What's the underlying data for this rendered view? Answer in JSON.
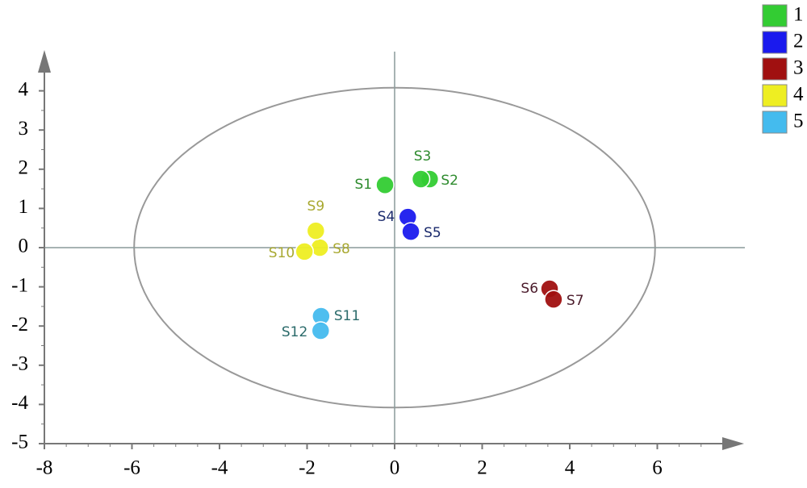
{
  "chart_data": {
    "type": "scatter",
    "xlim": [
      -8,
      8
    ],
    "ylim": [
      -5,
      5
    ],
    "xticks": [
      -8,
      -6,
      -4,
      -2,
      0,
      2,
      4,
      6
    ],
    "yticks": [
      -5,
      -4,
      -3,
      -2,
      -1,
      0,
      1,
      2,
      3,
      4
    ],
    "confidence_ellipse": {
      "rx": 5.95,
      "ry": 4.08
    },
    "series": [
      {
        "name": "1",
        "color": "#33cc33",
        "label_color": "#2e8b2e",
        "x": [
          -0.22,
          0.8,
          0.6
        ],
        "values": [
          1.6,
          1.75,
          1.75
        ],
        "point_labels": [
          "S1",
          "S2",
          "S3"
        ]
      },
      {
        "name": "2",
        "color": "#1a1aee",
        "label_color": "#1a2a6c",
        "x": [
          0.3,
          0.37
        ],
        "values": [
          0.78,
          0.41
        ],
        "point_labels": [
          "S4",
          "S5"
        ]
      },
      {
        "name": "3",
        "color": "#a01010",
        "label_color": "#4a1a2a",
        "x": [
          3.54,
          3.63
        ],
        "values": [
          -1.05,
          -1.32
        ],
        "point_labels": [
          "S6",
          "S7"
        ]
      },
      {
        "name": "4",
        "color": "#eeee22",
        "label_color": "#a8a830",
        "x": [
          -1.71,
          -1.8,
          -2.06
        ],
        "values": [
          0.0,
          0.43,
          -0.1
        ],
        "point_labels": [
          "S8",
          "S9",
          "S10"
        ]
      },
      {
        "name": "5",
        "color": "#44bbee",
        "label_color": "#2a6a6a",
        "x": [
          -1.68,
          -1.69
        ],
        "values": [
          -1.75,
          -2.12
        ],
        "point_labels": [
          "S11",
          "S12"
        ]
      }
    ]
  }
}
